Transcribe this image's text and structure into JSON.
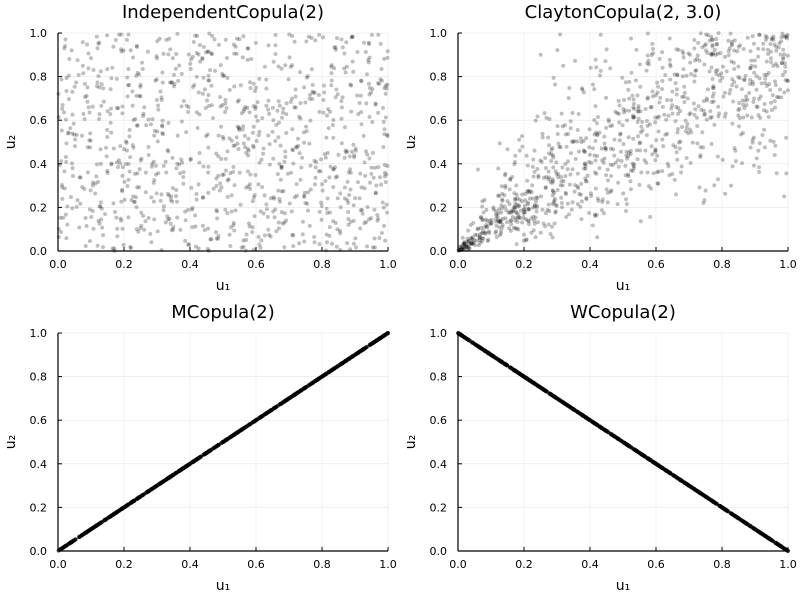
{
  "colors": {
    "point": "#000000",
    "grid": "#e6e6e6",
    "axis": "#000000",
    "background": "#ffffff"
  },
  "chart_data": [
    {
      "type": "scatter",
      "title": "IndependentCopula(2)",
      "xlabel": "u₁",
      "ylabel": "u₂",
      "xlim": [
        0,
        1
      ],
      "ylim": [
        0,
        1
      ],
      "xticks": [
        "0.0",
        "0.2",
        "0.4",
        "0.6",
        "0.8",
        "1.0"
      ],
      "yticks": [
        "0.0",
        "0.2",
        "0.4",
        "0.6",
        "0.8",
        "1.0"
      ],
      "grid": true,
      "distribution": "independent",
      "n_points": 1000,
      "point_alpha": 0.25
    },
    {
      "type": "scatter",
      "title": "ClaytonCopula(2, 3.0)",
      "xlabel": "u₁",
      "ylabel": "u₂",
      "xlim": [
        0,
        1
      ],
      "ylim": [
        0,
        1
      ],
      "xticks": [
        "0.0",
        "0.2",
        "0.4",
        "0.6",
        "0.8",
        "1.0"
      ],
      "yticks": [
        "0.0",
        "0.2",
        "0.4",
        "0.6",
        "0.8",
        "1.0"
      ],
      "grid": true,
      "distribution": "clayton",
      "theta": 3.0,
      "n_points": 1000,
      "point_alpha": 0.25
    },
    {
      "type": "scatter",
      "title": "MCopula(2)",
      "xlabel": "u₁",
      "ylabel": "u₂",
      "xlim": [
        0,
        1
      ],
      "ylim": [
        0,
        1
      ],
      "xticks": [
        "0.0",
        "0.2",
        "0.4",
        "0.6",
        "0.8",
        "1.0"
      ],
      "yticks": [
        "0.0",
        "0.2",
        "0.4",
        "0.6",
        "0.8",
        "1.0"
      ],
      "grid": true,
      "distribution": "comonotone",
      "relation": "u2 = u1",
      "n_points": 1000,
      "point_alpha": 0.25
    },
    {
      "type": "scatter",
      "title": "WCopula(2)",
      "xlabel": "u₁",
      "ylabel": "u₂",
      "xlim": [
        0,
        1
      ],
      "ylim": [
        0,
        1
      ],
      "xticks": [
        "0.0",
        "0.2",
        "0.4",
        "0.6",
        "0.8",
        "1.0"
      ],
      "yticks": [
        "0.0",
        "0.2",
        "0.4",
        "0.6",
        "0.8",
        "1.0"
      ],
      "grid": true,
      "distribution": "countermonotone",
      "relation": "u2 = 1 - u1",
      "n_points": 1000,
      "point_alpha": 0.25
    }
  ]
}
